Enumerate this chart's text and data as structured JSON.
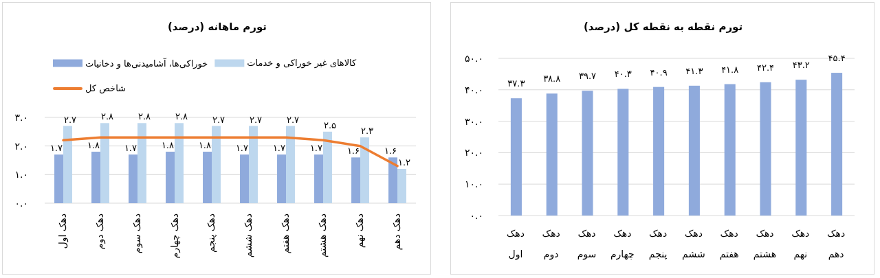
{
  "chart_data": [
    {
      "type": "bar",
      "title": "تورم ماهانه (درصد)",
      "categories": [
        "دهک اول",
        "دهک دوم",
        "دهک سوم",
        "دهک چهارم",
        "دهک پنجم",
        "دهک ششم",
        "دهک هفتم",
        "دهک هشتم",
        "دهک نهم",
        "دهک دهم"
      ],
      "series": [
        {
          "name": "خوراکی‌ها، آشامیدنی‌ها و دخانیات",
          "color": "#8faadc",
          "values": [
            1.7,
            1.8,
            1.7,
            1.8,
            1.8,
            1.7,
            1.7,
            1.7,
            1.6,
            1.6
          ],
          "value_labels": [
            "۱.۷",
            "۱.۸",
            "۱.۷",
            "۱.۸",
            "۱.۸",
            "۱.۷",
            "۱.۷",
            "۱.۷",
            "۱.۶",
            "۱.۶"
          ]
        },
        {
          "name": "کالاهای غیر خوراکی و خدمات",
          "color": "#bdd7ee",
          "values": [
            2.7,
            2.8,
            2.8,
            2.8,
            2.7,
            2.7,
            2.7,
            2.5,
            2.3,
            1.2
          ],
          "value_labels": [
            "۲.۷",
            "۲.۸",
            "۲.۸",
            "۲.۸",
            "۲.۷",
            "۲.۷",
            "۲.۷",
            "۲.۵",
            "۲.۳",
            "۱.۲"
          ]
        },
        {
          "name": "شاخص کل",
          "type": "line",
          "color": "#ed7d31",
          "values": [
            2.2,
            2.3,
            2.3,
            2.3,
            2.3,
            2.3,
            2.3,
            2.2,
            2.0,
            1.3
          ]
        }
      ],
      "ylim": [
        0,
        3
      ],
      "yticks": [
        {
          "value": 0,
          "label": "۰.۰"
        },
        {
          "value": 1,
          "label": "۱.۰"
        },
        {
          "value": 2,
          "label": "۲.۰"
        },
        {
          "value": 3,
          "label": "۳.۰"
        }
      ],
      "grid": "y",
      "legend": "top"
    },
    {
      "type": "bar",
      "title": "تورم نقطه به نقطه کل (درصد)",
      "categories": [
        "دهک اول",
        "دهک دوم",
        "دهک سوم",
        "دهک چهارم",
        "دهک پنجم",
        "دهک ششم",
        "دهک هفتم",
        "دهک هشتم",
        "دهک نهم",
        "دهک دهم"
      ],
      "values": [
        37.3,
        38.8,
        39.7,
        40.3,
        40.9,
        41.3,
        41.8,
        42.4,
        43.2,
        45.4
      ],
      "value_labels": [
        "۳۷.۳",
        "۳۸.۸",
        "۳۹.۷",
        "۴۰.۳",
        "۴۰.۹",
        "۴۱.۳",
        "۴۱.۸",
        "۴۲.۴",
        "۴۳.۲",
        "۴۵.۴"
      ],
      "color": "#8faadc",
      "ylim": [
        0,
        50
      ],
      "yticks": [
        {
          "value": 0,
          "label": "۰.۰"
        },
        {
          "value": 10,
          "label": "۱۰.۰"
        },
        {
          "value": 20,
          "label": "۲۰.۰"
        },
        {
          "value": 30,
          "label": "۳۰.۰"
        },
        {
          "value": 40,
          "label": "۴۰.۰"
        },
        {
          "value": 50,
          "label": "۵۰.۰"
        }
      ],
      "grid": "y"
    }
  ]
}
